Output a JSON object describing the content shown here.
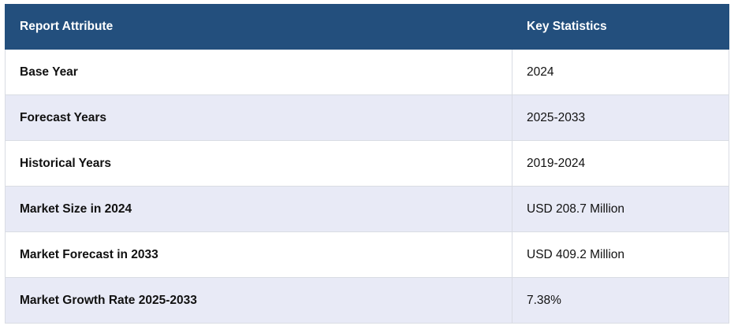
{
  "table": {
    "header": [
      "Report Attribute",
      "Key Statistics"
    ],
    "rows": [
      [
        "Base Year",
        "2024"
      ],
      [
        "Forecast Years",
        "2025-2033"
      ],
      [
        "Historical Years",
        "2019-2024"
      ],
      [
        "Market Size in 2024",
        "USD 208.7 Million"
      ],
      [
        "Market Forecast in 2033",
        "USD 409.2 Million"
      ],
      [
        "Market Growth Rate 2025-2033",
        "7.38%"
      ]
    ]
  }
}
